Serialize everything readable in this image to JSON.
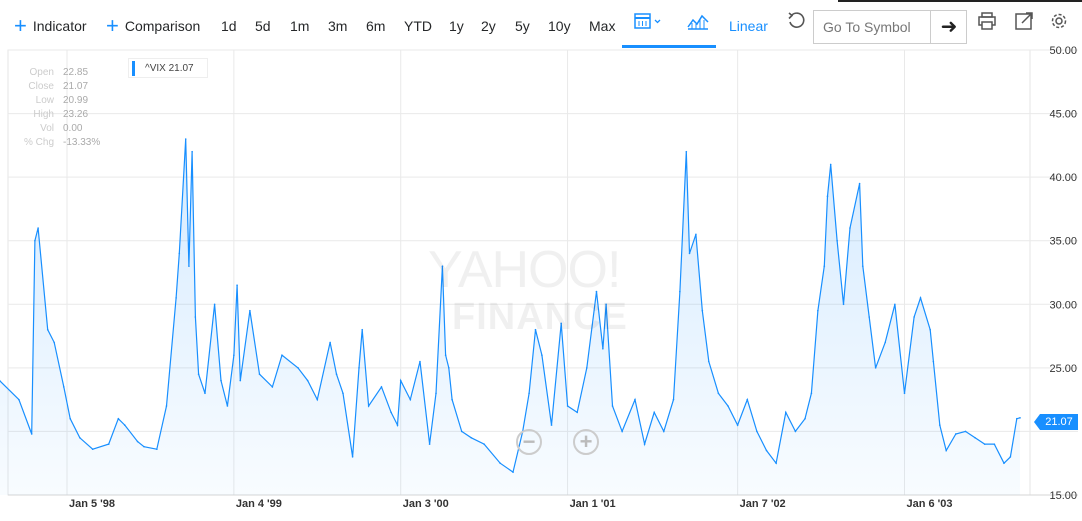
{
  "toolbar": {
    "indicator_label": "Indicator",
    "comparison_label": "Comparison",
    "ranges": [
      "1d",
      "5d",
      "1m",
      "3m",
      "6m",
      "YTD",
      "1y",
      "2y",
      "5y",
      "10y",
      "Max"
    ],
    "scale_label": "Linear",
    "symbol_placeholder": "Go To Symbol",
    "accent_color": "#188fff"
  },
  "legend": {
    "label": "^VIX 21.07"
  },
  "ohlc": {
    "labels": [
      "Open",
      "Close",
      "Low",
      "High",
      "Vol",
      "% Chg"
    ],
    "values": [
      "22.85",
      "21.07",
      "20.99",
      "23.26",
      "0.00",
      "-13.33%"
    ]
  },
  "watermark": {
    "line1": "YAHOO!",
    "line2": "FINANCE"
  },
  "price_tag": "21.07",
  "chart_data": {
    "type": "area",
    "series": [
      {
        "name": "^VIX",
        "color": "#188fff"
      }
    ],
    "ylim": [
      15,
      50
    ],
    "ytick_labels": [
      "50.00",
      "45.00",
      "40.00",
      "35.00",
      "30.00",
      "25.00",
      "15.00"
    ],
    "yticks": [
      50,
      45,
      40,
      35,
      30,
      25,
      15
    ],
    "xtick_labels": [
      "Jan 5 '98",
      "Jan 4 '99",
      "Jan 3 '00",
      "Jan 1 '01",
      "Jan 7 '02",
      "Jan 6 '03"
    ],
    "xticks": [
      "1998-01-05",
      "1999-01-04",
      "2000-01-03",
      "2001-01-01",
      "2002-01-07",
      "2003-01-06"
    ],
    "x": [
      "1997-08-11",
      "1997-09-22",
      "1997-10-20",
      "1997-10-27",
      "1997-11-03",
      "1997-11-24",
      "1997-12-08",
      "1997-12-29",
      "1998-01-12",
      "1998-02-02",
      "1998-03-02",
      "1998-04-06",
      "1998-04-27",
      "1998-05-11",
      "1998-06-08",
      "1998-06-22",
      "1998-07-20",
      "1998-08-10",
      "1998-08-31",
      "1998-09-07",
      "1998-09-21",
      "1998-09-28",
      "1998-10-05",
      "1998-10-12",
      "1998-10-19",
      "1998-11-02",
      "1998-11-23",
      "1998-12-07",
      "1998-12-21",
      "1999-01-04",
      "1999-01-11",
      "1999-01-18",
      "1999-02-08",
      "1999-03-01",
      "1999-03-29",
      "1999-04-19",
      "1999-05-24",
      "1999-06-14",
      "1999-07-05",
      "1999-08-02",
      "1999-08-16",
      "1999-08-30",
      "1999-09-20",
      "1999-10-04",
      "1999-10-11",
      "1999-10-25",
      "1999-11-22",
      "1999-12-13",
      "1999-12-27",
      "2000-01-03",
      "2000-01-24",
      "2000-02-14",
      "2000-03-06",
      "2000-03-20",
      "2000-04-03",
      "2000-04-10",
      "2000-04-17",
      "2000-04-24",
      "2000-05-15",
      "2000-06-05",
      "2000-07-03",
      "2000-08-07",
      "2000-09-04",
      "2000-09-25",
      "2000-10-09",
      "2000-10-23",
      "2000-11-06",
      "2000-11-27",
      "2000-12-18",
      "2001-01-01",
      "2001-01-22",
      "2001-02-12",
      "2001-03-05",
      "2001-03-19",
      "2001-03-26",
      "2001-04-09",
      "2001-04-30",
      "2001-05-28",
      "2001-06-18",
      "2001-07-09",
      "2001-07-30",
      "2001-08-20",
      "2001-09-03",
      "2001-09-17",
      "2001-09-24",
      "2001-10-08",
      "2001-10-22",
      "2001-11-05",
      "2001-11-26",
      "2001-12-17",
      "2002-01-07",
      "2002-01-28",
      "2002-02-18",
      "2002-03-11",
      "2002-04-01",
      "2002-04-22",
      "2002-05-13",
      "2002-06-03",
      "2002-06-17",
      "2002-07-01",
      "2002-07-15",
      "2002-07-22",
      "2002-07-29",
      "2002-08-12",
      "2002-08-26",
      "2002-09-09",
      "2002-09-30",
      "2002-10-07",
      "2002-10-21",
      "2002-11-04",
      "2002-11-25",
      "2002-12-16",
      "2003-01-06",
      "2003-01-27",
      "2003-02-10",
      "2003-03-03",
      "2003-03-10",
      "2003-03-24",
      "2003-04-07",
      "2003-04-28",
      "2003-05-19",
      "2003-06-09",
      "2003-06-30",
      "2003-07-21",
      "2003-08-11",
      "2003-08-25",
      "2003-09-08",
      "2003-09-15"
    ],
    "values": [
      24.0,
      22.5,
      19.8,
      35.0,
      36.0,
      28.0,
      27.0,
      23.5,
      21.0,
      19.5,
      18.6,
      19.0,
      21.0,
      20.5,
      19.2,
      18.8,
      18.6,
      22.0,
      30.5,
      34.0,
      43.0,
      33.0,
      42.0,
      29.0,
      24.5,
      23.0,
      30.0,
      24.0,
      22.0,
      26.0,
      31.5,
      24.0,
      29.5,
      24.5,
      23.5,
      26.0,
      25.0,
      24.0,
      22.5,
      27.0,
      24.5,
      23.0,
      18.0,
      25.0,
      28.0,
      22.0,
      23.5,
      21.5,
      20.5,
      24.0,
      22.5,
      25.5,
      19.0,
      23.0,
      33.0,
      26.0,
      25.0,
      22.5,
      20.0,
      19.5,
      19.0,
      17.5,
      16.8,
      20.0,
      23.0,
      28.0,
      26.0,
      20.5,
      28.5,
      22.0,
      21.5,
      25.0,
      31.0,
      26.5,
      30.0,
      22.0,
      20.0,
      22.5,
      19.0,
      21.5,
      20.0,
      22.5,
      31.0,
      42.0,
      34.0,
      35.5,
      29.5,
      25.5,
      23.0,
      22.0,
      20.5,
      22.5,
      20.0,
      18.5,
      17.5,
      21.5,
      20.0,
      21.0,
      23.0,
      29.5,
      33.0,
      38.5,
      41.0,
      35.0,
      30.0,
      36.0,
      39.5,
      33.0,
      29.0,
      25.0,
      27.0,
      30.0,
      23.0,
      29.0,
      30.5,
      28.0,
      25.5,
      20.5,
      18.5,
      19.8,
      20.0,
      19.5,
      19.0,
      19.0,
      17.5,
      18.0,
      21.0,
      21.07
    ]
  }
}
